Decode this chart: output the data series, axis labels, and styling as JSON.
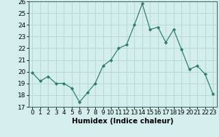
{
  "x": [
    0,
    1,
    2,
    3,
    4,
    5,
    6,
    7,
    8,
    9,
    10,
    11,
    12,
    13,
    14,
    15,
    16,
    17,
    18,
    19,
    20,
    21,
    22,
    23
  ],
  "y": [
    19.9,
    19.2,
    19.6,
    19.0,
    19.0,
    18.6,
    17.4,
    18.2,
    19.0,
    20.5,
    21.0,
    22.0,
    22.3,
    24.0,
    25.8,
    23.6,
    23.8,
    22.5,
    23.6,
    21.9,
    20.2,
    20.5,
    19.8,
    18.1
  ],
  "bg_color": "#d4eeee",
  "grid_color": "#b8d8d8",
  "line_color": "#2e7d6e",
  "marker_color": "#2e7d6e",
  "xlabel": "Humidex (Indice chaleur)",
  "ylim": [
    17,
    26
  ],
  "xlim": [
    -0.5,
    23.5
  ],
  "yticks": [
    17,
    18,
    19,
    20,
    21,
    22,
    23,
    24,
    25,
    26
  ],
  "xtick_labels": [
    "0",
    "1",
    "2",
    "3",
    "4",
    "5",
    "6",
    "7",
    "8",
    "9",
    "10",
    "11",
    "12",
    "13",
    "14",
    "15",
    "16",
    "17",
    "18",
    "19",
    "20",
    "21",
    "22",
    "23"
  ],
  "font_size": 6.5,
  "xlabel_fontsize": 7.5
}
